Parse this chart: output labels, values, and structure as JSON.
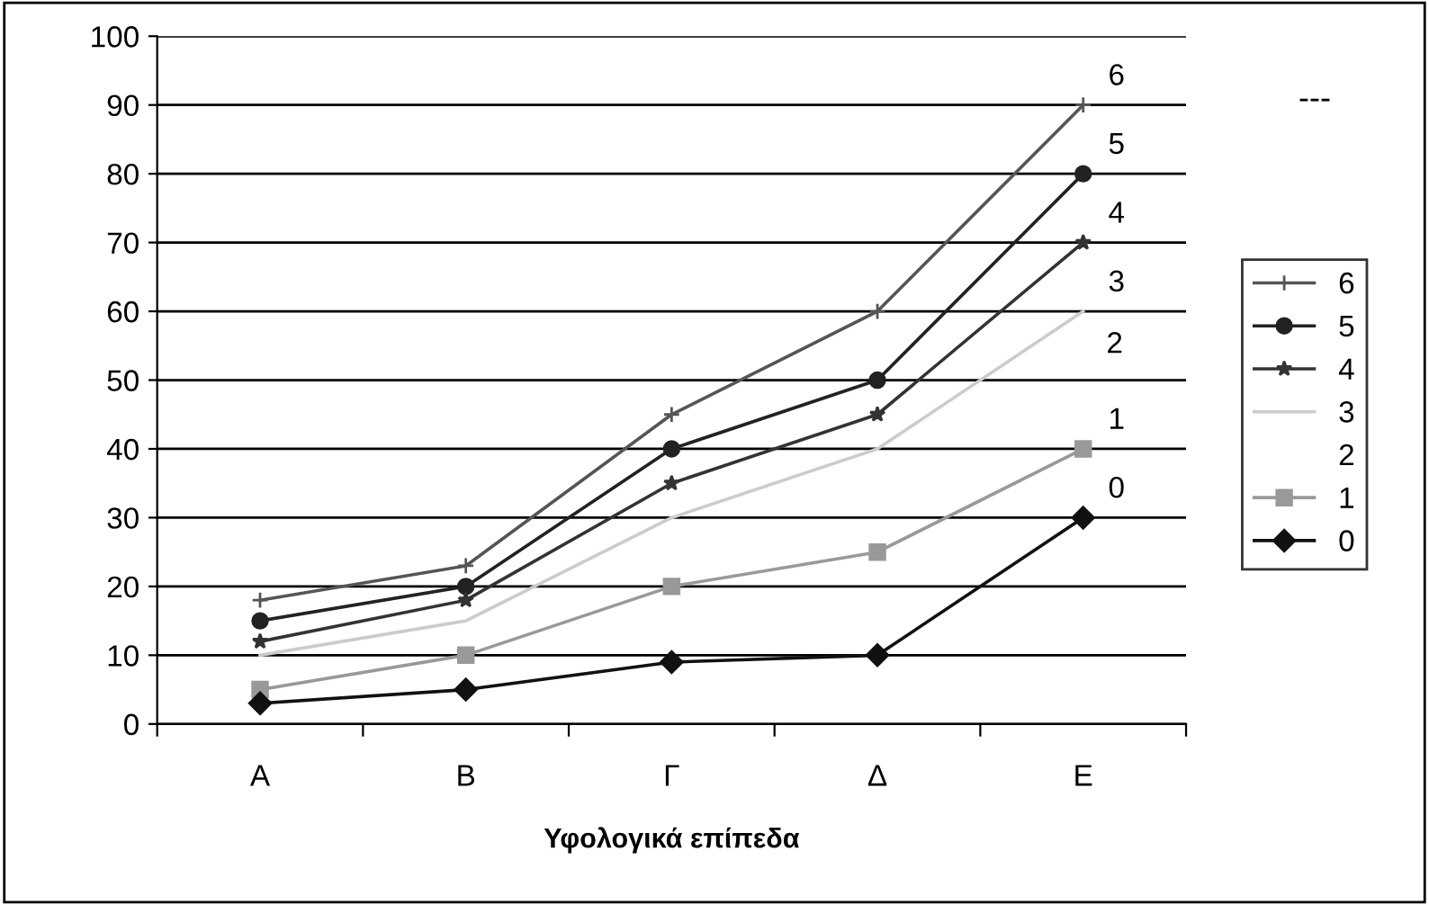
{
  "chart_data": {
    "type": "line",
    "xlabel": "Υφολογικά επίπεδα",
    "categories": [
      "Α",
      "Β",
      "Γ",
      "Δ",
      "Ε"
    ],
    "series": [
      {
        "name": "6",
        "color": "#555555",
        "marker": "cross",
        "values": [
          18,
          23,
          45,
          60,
          90
        ]
      },
      {
        "name": "5",
        "color": "#222222",
        "marker": "circle",
        "values": [
          15,
          20,
          40,
          50,
          80
        ]
      },
      {
        "name": "4",
        "color": "#333333",
        "marker": "star",
        "values": [
          12,
          18,
          35,
          45,
          70
        ]
      },
      {
        "name": "3",
        "color": "#cccccc",
        "marker": "none",
        "values": [
          10,
          15,
          30,
          40,
          60
        ]
      },
      {
        "name": "2",
        "marker": "none",
        "values": [
          null,
          null,
          null,
          null,
          null
        ]
      },
      {
        "name": "1",
        "color": "#999999",
        "marker": "square",
        "values": [
          5,
          10,
          20,
          25,
          40
        ]
      },
      {
        "name": "0",
        "color": "#111111",
        "marker": "diamond",
        "values": [
          3,
          5,
          9,
          10,
          30
        ]
      }
    ],
    "ylim": [
      0,
      100
    ],
    "yticks": [
      0,
      10,
      20,
      30,
      40,
      50,
      60,
      70,
      80,
      90,
      100
    ],
    "grid": "y",
    "legend": "right",
    "line_style": "solid",
    "annotations": [
      "---",
      "2"
    ]
  }
}
